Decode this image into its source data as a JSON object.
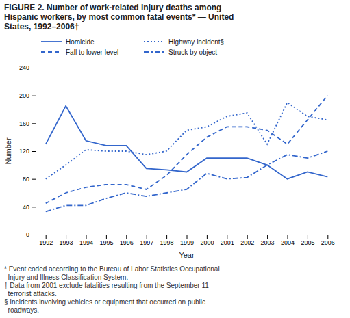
{
  "chart_data": {
    "type": "line",
    "title": "FIGURE 2. Number of work-related injury deaths among\nHispanic workers, by most common fatal events* — United\nStates, 1992–2006†",
    "x_label": "Year",
    "y_label": "Number",
    "x": [
      1992,
      1993,
      1994,
      1995,
      1996,
      1997,
      1998,
      1999,
      2000,
      2001,
      2002,
      2003,
      2004,
      2005,
      2006
    ],
    "series": [
      {
        "name": "Homicide",
        "color": "#3366cc",
        "line_style": "solid",
        "values": [
          130,
          185,
          135,
          128,
          128,
          95,
          93,
          90,
          110,
          110,
          110,
          100,
          80,
          90,
          83
        ]
      },
      {
        "name": "Highway incident§",
        "color": "#3366cc",
        "line_style": "dotted",
        "values": [
          80,
          100,
          122,
          120,
          120,
          115,
          120,
          150,
          155,
          170,
          175,
          130,
          190,
          170,
          165
        ]
      },
      {
        "name": "Fall to lower level",
        "color": "#3366cc",
        "line_style": "dashed",
        "values": [
          45,
          60,
          68,
          72,
          72,
          65,
          85,
          115,
          140,
          155,
          155,
          150,
          130,
          165,
          200
        ]
      },
      {
        "name": "Struck by object",
        "color": "#3366cc",
        "line_style": "dashdot",
        "values": [
          33,
          42,
          42,
          52,
          60,
          55,
          60,
          65,
          88,
          80,
          82,
          100,
          115,
          110,
          120
        ]
      }
    ],
    "xlim": [
      1991.5,
      2006.5
    ],
    "xticks": [
      1992,
      1993,
      1994,
      1995,
      1996,
      1997,
      1998,
      1999,
      2000,
      2001,
      2002,
      2003,
      2004,
      2005,
      2006
    ],
    "ylim": [
      0,
      240
    ],
    "yticks": [
      0,
      40,
      80,
      120,
      160,
      200,
      240
    ],
    "grid": false,
    "legend": "upper left",
    "annotations": [
      "* Event coded according to the Bureau of Labor Statistics Occupational",
      "  Injury and Illness Classification System.",
      "† Data from 2001 exclude fatalities resulting from the September 11",
      "  terrorist attacks.",
      "§ Incidents involving vehicles or equipment that occurred on public",
      "  roadways."
    ]
  }
}
